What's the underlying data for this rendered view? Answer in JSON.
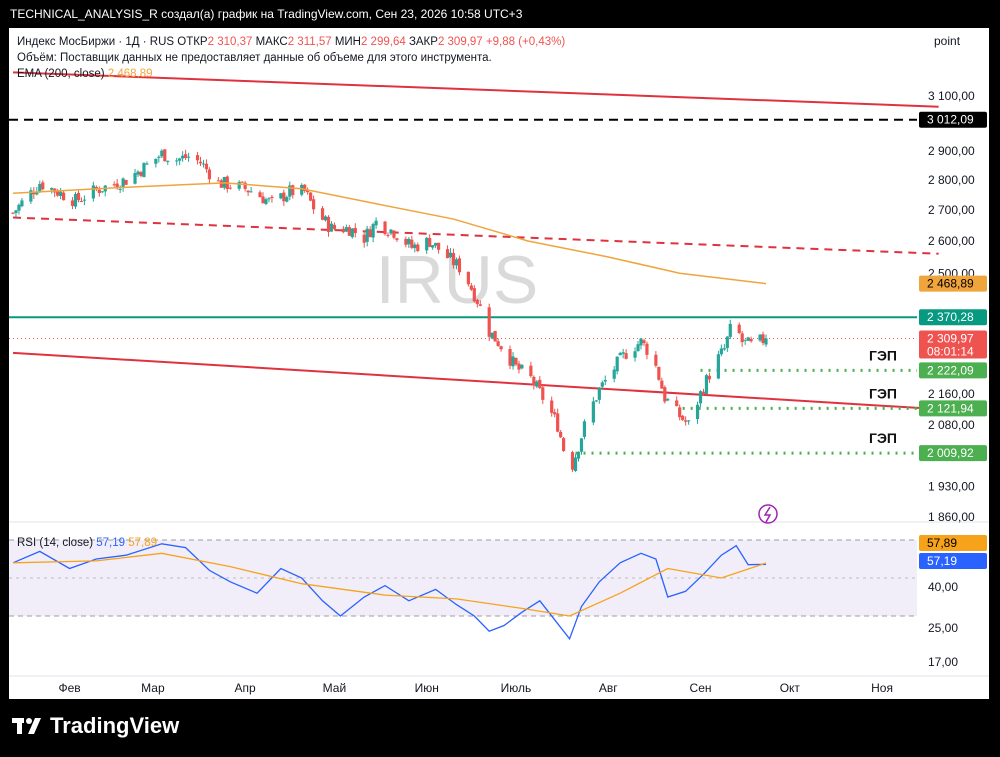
{
  "header": {
    "caption": "TECHNICAL_ANALYSIS_R создал(а) график на TradingView.com, Сен 23, 2026 10:58 UTC+3"
  },
  "legend": {
    "symbol": "Индекс МосБиржи · 1Д · RUS",
    "open_label": "ОТКР",
    "open": "2 310,37",
    "high_label": "МАКС",
    "high": "2 311,57",
    "low_label": "МИН",
    "low": "2 299,64",
    "close_label": "ЗАКР",
    "close": "2 309,97",
    "change": "+9,88 (+0,43%)",
    "volume_note": "Объём: Поставщик данных не предоставляет данные об объеме для этого инструмента.",
    "ema_label": "EMA (200, close)",
    "ema_value": "2 468,89",
    "scale_mode": "point"
  },
  "watermark": "IRUS",
  "rsi_legend": {
    "label": "RSI (14, close)",
    "rsi_value": "57,19",
    "ma_value": "57,89"
  },
  "footer": {
    "brand": "TradingView"
  },
  "colors": {
    "up": "#26a69a",
    "down": "#ef5350",
    "ema": "#f0a43c",
    "trend": "#e0323e",
    "rsi": "#2962ff",
    "rsi_ma": "#f7a21b",
    "gap": "#4caf50",
    "level": "#089981"
  },
  "chart_data": [
    {
      "type": "candlestick",
      "title": "Индекс МосБиржи · 1Д · RUS",
      "y_axis": {
        "tick_labels": [
          "3 100,00",
          "2 900,00",
          "2 800,00",
          "2 700,00",
          "2 600,00",
          "2 500,00",
          "2 160,00",
          "2 080,00",
          "1 930,00",
          "1 860,00"
        ],
        "scale": "log"
      },
      "x_axis": {
        "tick_labels": [
          "Фев",
          "Мар",
          "Апр",
          "Май",
          "Июн",
          "Июль",
          "Авг",
          "Сен",
          "Окт",
          "Ноя"
        ]
      },
      "price_labels": [
        {
          "value": 3012.09,
          "text": "3 012,09",
          "style": "dashed-black"
        },
        {
          "value": 2468.89,
          "text": "2 468,89",
          "style": "ema"
        },
        {
          "value": 2370.28,
          "text": "2 370,28",
          "style": "level"
        },
        {
          "value": 2309.97,
          "text": "2 309,97",
          "style": "last",
          "sub": "08:01:14"
        },
        {
          "value": 2222.09,
          "text": "2 222,09",
          "style": "gap"
        },
        {
          "value": 2121.94,
          "text": "2 121,94",
          "style": "gap"
        },
        {
          "value": 2009.92,
          "text": "2 009,92",
          "style": "gap"
        }
      ],
      "gap_label": "ГЭП",
      "gaps": [
        {
          "from": "2026-09-01",
          "level": 2222.09
        },
        {
          "from": "2026-08-26",
          "level": 2121.94
        },
        {
          "from": "2026-07-21",
          "level": 2009.92
        }
      ],
      "trendlines": [
        {
          "name": "upper",
          "from": [
            "2026-01-13",
            3190
          ],
          "to": [
            "2026-11-20",
            3060
          ],
          "style": "solid"
        },
        {
          "name": "channel-mid",
          "from": [
            "2026-01-13",
            2675
          ],
          "to": [
            "2026-11-20",
            2560
          ],
          "style": "dashed"
        },
        {
          "name": "lower",
          "from": [
            "2026-01-13",
            2270
          ],
          "to": [
            "2026-11-20",
            2120
          ],
          "style": "solid"
        }
      ],
      "horizontal_levels": [
        {
          "value": 3012.09,
          "style": "dashed-black"
        },
        {
          "value": 2370.28,
          "style": "solid-green"
        }
      ],
      "close_series_anchors": [
        [
          "2026-01-13",
          2690
        ],
        [
          "2026-01-22",
          2790
        ],
        [
          "2026-01-28",
          2760
        ],
        [
          "2026-02-03",
          2730
        ],
        [
          "2026-02-11",
          2770
        ],
        [
          "2026-02-20",
          2800
        ],
        [
          "2026-02-27",
          2850
        ],
        [
          "2026-03-04",
          2890
        ],
        [
          "2026-03-09",
          2870
        ],
        [
          "2026-03-13",
          2880
        ],
        [
          "2026-03-17",
          2860
        ],
        [
          "2026-03-23",
          2790
        ],
        [
          "2026-03-29",
          2780
        ],
        [
          "2026-04-04",
          2760
        ],
        [
          "2026-04-10",
          2720
        ],
        [
          "2026-04-16",
          2760
        ],
        [
          "2026-04-21",
          2760
        ],
        [
          "2026-04-25",
          2690
        ],
        [
          "2026-04-30",
          2640
        ],
        [
          "2026-05-06",
          2640
        ],
        [
          "2026-05-11",
          2610
        ],
        [
          "2026-05-15",
          2660
        ],
        [
          "2026-05-21",
          2630
        ],
        [
          "2026-05-27",
          2580
        ],
        [
          "2026-06-02",
          2600
        ],
        [
          "2026-06-08",
          2550
        ],
        [
          "2026-06-13",
          2510
        ],
        [
          "2026-06-18",
          2420
        ],
        [
          "2026-06-22",
          2330
        ],
        [
          "2026-06-26",
          2290
        ],
        [
          "2026-07-01",
          2230
        ],
        [
          "2026-07-06",
          2200
        ],
        [
          "2026-07-10",
          2150
        ],
        [
          "2026-07-15",
          2080
        ],
        [
          "2026-07-19",
          1960
        ],
        [
          "2026-07-21",
          2005
        ],
        [
          "2026-07-25",
          2100
        ],
        [
          "2026-07-29",
          2170
        ],
        [
          "2026-08-04",
          2240
        ],
        [
          "2026-08-08",
          2280
        ],
        [
          "2026-08-12",
          2300
        ],
        [
          "2026-08-16",
          2260
        ],
        [
          "2026-08-20",
          2150
        ],
        [
          "2026-08-24",
          2110
        ],
        [
          "2026-08-28",
          2080
        ],
        [
          "2026-09-01",
          2160
        ],
        [
          "2026-09-05",
          2230
        ],
        [
          "2026-09-09",
          2280
        ],
        [
          "2026-09-12",
          2360
        ],
        [
          "2026-09-15",
          2300
        ],
        [
          "2026-09-18",
          2290
        ],
        [
          "2026-09-23",
          2309.97
        ]
      ],
      "ema": [
        [
          "2026-01-13",
          2755
        ],
        [
          "2026-02-20",
          2775
        ],
        [
          "2026-03-25",
          2790
        ],
        [
          "2026-04-20",
          2770
        ],
        [
          "2026-05-15",
          2720
        ],
        [
          "2026-06-10",
          2670
        ],
        [
          "2026-07-05",
          2600
        ],
        [
          "2026-08-01",
          2550
        ],
        [
          "2026-08-25",
          2500
        ],
        [
          "2026-09-23",
          2468.89
        ]
      ]
    },
    {
      "type": "line",
      "title": "RSI (14, close)",
      "y_axis": {
        "tick_labels": [
          "40,00",
          "25,00",
          "17,00"
        ],
        "bands": [
          70,
          30
        ]
      },
      "series": [
        {
          "name": "RSI",
          "values": [
            [
              "2026-01-13",
              58
            ],
            [
              "2026-01-22",
              64
            ],
            [
              "2026-02-01",
              55
            ],
            [
              "2026-02-10",
              60
            ],
            [
              "2026-02-20",
              62
            ],
            [
              "2026-03-04",
              68
            ],
            [
              "2026-03-12",
              66
            ],
            [
              "2026-03-20",
              54
            ],
            [
              "2026-03-27",
              48
            ],
            [
              "2026-04-05",
              42
            ],
            [
              "2026-04-13",
              55
            ],
            [
              "2026-04-20",
              50
            ],
            [
              "2026-04-27",
              38
            ],
            [
              "2026-05-03",
              30
            ],
            [
              "2026-05-11",
              40
            ],
            [
              "2026-05-18",
              46
            ],
            [
              "2026-05-26",
              38
            ],
            [
              "2026-06-04",
              44
            ],
            [
              "2026-06-11",
              36
            ],
            [
              "2026-06-17",
              30
            ],
            [
              "2026-06-22",
              22
            ],
            [
              "2026-06-27",
              25
            ],
            [
              "2026-07-03",
              32
            ],
            [
              "2026-07-09",
              38
            ],
            [
              "2026-07-14",
              28
            ],
            [
              "2026-07-19",
              18
            ],
            [
              "2026-07-23",
              35
            ],
            [
              "2026-07-29",
              48
            ],
            [
              "2026-08-05",
              58
            ],
            [
              "2026-08-12",
              63
            ],
            [
              "2026-08-17",
              60
            ],
            [
              "2026-08-21",
              40
            ],
            [
              "2026-08-27",
              43
            ],
            [
              "2026-09-02",
              52
            ],
            [
              "2026-09-08",
              62
            ],
            [
              "2026-09-13",
              67
            ],
            [
              "2026-09-17",
              57
            ],
            [
              "2026-09-23",
              57.19
            ]
          ]
        },
        {
          "name": "RSI MA",
          "values": [
            [
              "2026-01-13",
              58
            ],
            [
              "2026-02-10",
              59
            ],
            [
              "2026-03-04",
              63
            ],
            [
              "2026-03-27",
              56
            ],
            [
              "2026-04-20",
              47
            ],
            [
              "2026-05-18",
              41
            ],
            [
              "2026-06-11",
              39
            ],
            [
              "2026-07-03",
              34
            ],
            [
              "2026-07-19",
              30
            ],
            [
              "2026-08-05",
              42
            ],
            [
              "2026-08-21",
              55
            ],
            [
              "2026-09-08",
              50
            ],
            [
              "2026-09-23",
              57.89
            ]
          ]
        }
      ]
    }
  ]
}
